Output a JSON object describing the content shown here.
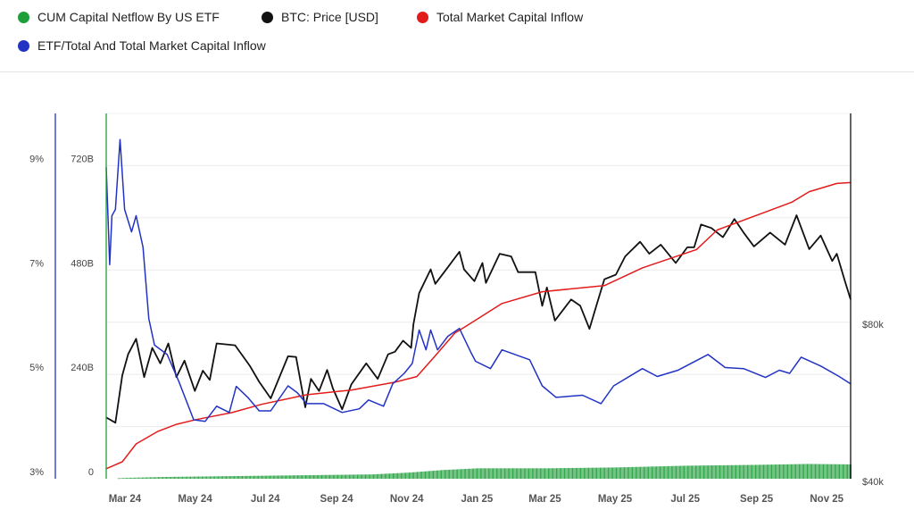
{
  "legend": [
    {
      "label": "CUM Capital Netflow By US ETF",
      "color": "#1f9e3a"
    },
    {
      "label": "BTC: Price [USD]",
      "color": "#111111"
    },
    {
      "label": "Total Market Capital Inflow",
      "color": "#e21b1b"
    },
    {
      "label": "ETF/Total And Total Market Capital Inflow",
      "color": "#2233c4"
    }
  ],
  "chart_data": {
    "type": "line",
    "x_range": [
      "2024-02-13",
      "2025-11-21"
    ],
    "x_tick_labels": [
      {
        "date": "2024-03-01",
        "label": "Mar 24"
      },
      {
        "date": "2024-05-01",
        "label": "May 24"
      },
      {
        "date": "2024-07-01",
        "label": "Jul 24"
      },
      {
        "date": "2024-09-01",
        "label": "Sep 24"
      },
      {
        "date": "2024-11-01",
        "label": "Nov 24"
      },
      {
        "date": "2025-01-01",
        "label": "Jan 25"
      },
      {
        "date": "2025-03-01",
        "label": "Mar 25"
      },
      {
        "date": "2025-05-01",
        "label": "May 25"
      },
      {
        "date": "2025-07-01",
        "label": "Jul 25"
      },
      {
        "date": "2025-09-01",
        "label": "Sep 25"
      },
      {
        "date": "2025-11-01",
        "label": "Nov 25"
      }
    ],
    "axes": {
      "percent": {
        "ylim": [
          3,
          10
        ],
        "ticks": [
          {
            "v": 3,
            "label": "3%"
          },
          {
            "v": 5,
            "label": "5%"
          },
          {
            "v": 7,
            "label": "7%"
          },
          {
            "v": 9,
            "label": "9%"
          }
        ],
        "color": "#2233c4"
      },
      "capital": {
        "ylim": [
          0,
          840
        ],
        "ticks": [
          {
            "v": 0,
            "label": "0"
          },
          {
            "v": 240,
            "label": "240B"
          },
          {
            "v": 480,
            "label": "480B"
          },
          {
            "v": 720,
            "label": "720B"
          }
        ],
        "color": "#1f9e3a"
      },
      "price": {
        "ylim": [
          40000,
          200000
        ],
        "scale": "log",
        "ticks": [
          {
            "v": 40000,
            "label": "$40k"
          },
          {
            "v": 80000,
            "label": "$80k"
          }
        ],
        "color": "#111111"
      }
    },
    "grid": true,
    "legend_position": "top",
    "series": [
      {
        "name": "CUM Capital Netflow By US ETF",
        "type": "bar",
        "axis": "capital",
        "color": "#1f9e3a",
        "unit": "B",
        "x": [
          "2024-02-13",
          "2024-03-01",
          "2024-04-01",
          "2024-06-01",
          "2024-08-01",
          "2024-10-01",
          "2024-11-01",
          "2024-12-01",
          "2025-01-01",
          "2025-03-01",
          "2025-05-01",
          "2025-07-01",
          "2025-09-01",
          "2025-10-15",
          "2025-11-21"
        ],
        "y": [
          0,
          2,
          4,
          6,
          8,
          10,
          14,
          20,
          24,
          24,
          26,
          30,
          32,
          34,
          33
        ]
      },
      {
        "name": "BTC: Price [USD]",
        "type": "line",
        "axis": "price",
        "color": "#111111",
        "unit": "k USD",
        "x": [
          "2024-02-13",
          "2024-02-21",
          "2024-02-27",
          "2024-03-03",
          "2024-03-10",
          "2024-03-17",
          "2024-03-24",
          "2024-03-31",
          "2024-04-07",
          "2024-04-14",
          "2024-04-21",
          "2024-04-30",
          "2024-05-07",
          "2024-05-13",
          "2024-05-19",
          "2024-06-04",
          "2024-06-17",
          "2024-06-25",
          "2024-07-05",
          "2024-07-20",
          "2024-07-27",
          "2024-08-04",
          "2024-08-09",
          "2024-08-16",
          "2024-08-23",
          "2024-08-28",
          "2024-09-05",
          "2024-09-13",
          "2024-09-26",
          "2024-10-06",
          "2024-10-15",
          "2024-10-21",
          "2024-10-28",
          "2024-11-04",
          "2024-11-06",
          "2024-11-11",
          "2024-11-21",
          "2024-11-25",
          "2024-12-07",
          "2024-12-16",
          "2024-12-20",
          "2024-12-29",
          "2025-01-05",
          "2025-01-08",
          "2025-01-20",
          "2025-01-30",
          "2025-02-05",
          "2025-02-20",
          "2025-02-26",
          "2025-03-02",
          "2025-03-09",
          "2025-03-23",
          "2025-03-31",
          "2025-04-08",
          "2025-04-14",
          "2025-04-21",
          "2025-05-01",
          "2025-05-09",
          "2025-05-22",
          "2025-05-30",
          "2025-06-09",
          "2025-06-22",
          "2025-07-02",
          "2025-07-08",
          "2025-07-14",
          "2025-07-23",
          "2025-08-02",
          "2025-08-12",
          "2025-08-20",
          "2025-08-29",
          "2025-09-12",
          "2025-09-25",
          "2025-10-05",
          "2025-10-16",
          "2025-10-26",
          "2025-11-05",
          "2025-11-09",
          "2025-11-16",
          "2025-11-21"
        ],
        "y": [
          52.4,
          51.2,
          63.1,
          69.2,
          74.1,
          62.6,
          71.2,
          66.5,
          72.6,
          62.6,
          67.3,
          58.9,
          64.4,
          61.8,
          72.6,
          72.0,
          65.7,
          61.3,
          57.0,
          68.6,
          68.4,
          54.8,
          62.1,
          58.9,
          64.6,
          59.6,
          54.3,
          60.6,
          66.5,
          62.1,
          69.2,
          70.0,
          73.5,
          71.2,
          79.0,
          90.6,
          100.6,
          94.4,
          102.3,
          108.7,
          100.6,
          95.5,
          103.5,
          94.8,
          107.8,
          106.5,
          99.4,
          99.4,
          85.7,
          92.9,
          80.3,
          88.1,
          85.7,
          77.4,
          85.7,
          96.3,
          98.3,
          106.5,
          113.6,
          107.8,
          112.2,
          103.5,
          110.9,
          110.9,
          122.6,
          120.7,
          115.9,
          125.6,
          118.3,
          111.3,
          118.3,
          112.2,
          127.7,
          110.0,
          116.8,
          104.4,
          107.8,
          95.5,
          88.1
        ]
      },
      {
        "name": "Total Market Capital Inflow",
        "type": "line",
        "axis": "capital",
        "color": "#e21b1b",
        "unit": "B",
        "x": [
          "2024-02-13",
          "2024-02-27",
          "2024-03-10",
          "2024-03-29",
          "2024-04-14",
          "2024-05-01",
          "2024-06-01",
          "2024-06-27",
          "2024-08-05",
          "2024-09-13",
          "2024-10-21",
          "2024-11-09",
          "2024-11-24",
          "2024-12-12",
          "2024-12-20",
          "2025-01-22",
          "2025-02-26",
          "2025-04-21",
          "2025-05-24",
          "2025-07-10",
          "2025-07-28",
          "2025-10-01",
          "2025-10-16",
          "2025-11-09",
          "2025-11-21"
        ],
        "y": [
          23,
          39,
          80,
          109,
          125,
          136,
          152,
          171,
          193,
          204,
          222,
          235,
          280,
          335,
          348,
          403,
          430,
          444,
          485,
          527,
          572,
          636,
          660,
          679,
          681
        ]
      },
      {
        "name": "ETF/Total And Total Market Capital Inflow",
        "type": "line",
        "axis": "percent",
        "color": "#2233c4",
        "unit": "%",
        "x": [
          "2024-02-13",
          "2024-02-16",
          "2024-02-18",
          "2024-02-21",
          "2024-02-25",
          "2024-02-29",
          "2024-03-06",
          "2024-03-10",
          "2024-03-16",
          "2024-03-21",
          "2024-03-26",
          "2024-04-06",
          "2024-04-16",
          "2024-04-29",
          "2024-05-09",
          "2024-05-19",
          "2024-05-30",
          "2024-06-05",
          "2024-06-15",
          "2024-06-25",
          "2024-07-05",
          "2024-07-20",
          "2024-07-28",
          "2024-08-05",
          "2024-08-20",
          "2024-09-05",
          "2024-09-20",
          "2024-09-28",
          "2024-10-11",
          "2024-10-19",
          "2024-10-29",
          "2024-11-05",
          "2024-11-11",
          "2024-11-17",
          "2024-11-21",
          "2024-11-27",
          "2024-12-06",
          "2024-12-16",
          "2024-12-26",
          "2024-12-30",
          "2025-01-12",
          "2025-01-22",
          "2025-02-15",
          "2025-02-26",
          "2025-03-10",
          "2025-04-02",
          "2025-04-18",
          "2025-04-29",
          "2025-05-24",
          "2025-06-06",
          "2025-06-24",
          "2025-07-20",
          "2025-08-04",
          "2025-08-20",
          "2025-09-08",
          "2025-09-20",
          "2025-09-29",
          "2025-10-09",
          "2025-10-26",
          "2025-11-11",
          "2025-11-21"
        ],
        "y": [
          8.97,
          7.1,
          8.04,
          8.16,
          9.5,
          8.16,
          7.73,
          8.04,
          7.44,
          6.07,
          5.56,
          5.38,
          4.87,
          4.13,
          4.1,
          4.39,
          4.27,
          4.77,
          4.56,
          4.3,
          4.3,
          4.78,
          4.65,
          4.44,
          4.44,
          4.27,
          4.34,
          4.51,
          4.39,
          4.82,
          5.02,
          5.21,
          5.85,
          5.47,
          5.85,
          5.47,
          5.73,
          5.88,
          5.42,
          5.25,
          5.11,
          5.47,
          5.28,
          4.78,
          4.56,
          4.6,
          4.44,
          4.78,
          5.11,
          4.96,
          5.08,
          5.38,
          5.13,
          5.11,
          4.94,
          5.08,
          5.02,
          5.33,
          5.16,
          4.96,
          4.82
        ]
      }
    ]
  }
}
